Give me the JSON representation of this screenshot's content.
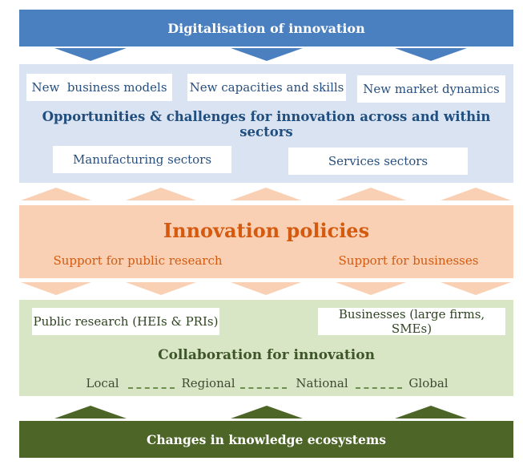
{
  "top": {
    "title": "Digitalisation of innovation"
  },
  "opportunities": {
    "items": [
      "New  business models",
      "New capacities and skills",
      "New market dynamics"
    ],
    "heading": "Opportunities & challenges for innovation across and within sectors",
    "sectors": [
      "Manufacturing sectors",
      "Services sectors"
    ]
  },
  "policies": {
    "title": "Innovation policies",
    "supports": [
      "Support for public research",
      "Support for businesses"
    ]
  },
  "collaboration": {
    "actors": [
      "Public research (HEIs & PRIs)",
      "Businesses (large firms, SMEs)"
    ],
    "heading": "Collaboration for innovation",
    "scales": [
      "Local",
      "Regional",
      "National",
      "Global"
    ]
  },
  "bottom": {
    "title": "Changes in knowledge ecosystems"
  },
  "colors": {
    "blue_bar": "#4a7fc0",
    "blue_panel": "#dae3f1",
    "orange_panel": "#f9d0b3",
    "orange_text": "#d45a10",
    "green_panel": "#d9e6c6",
    "green_bar": "#4d6628"
  }
}
